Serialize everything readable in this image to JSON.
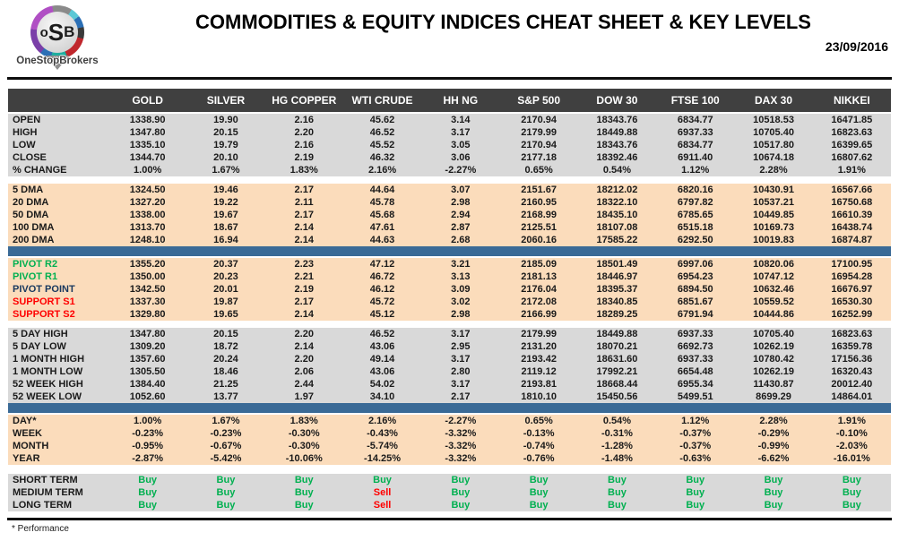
{
  "header": {
    "logo_text": "oSB",
    "logo_name": "OneStopBrokers",
    "title": "COMMODITIES & EQUITY INDICES CHEAT SHEET & KEY LEVELS",
    "date": "23/09/2016"
  },
  "colors": {
    "header_row_bg": "#404040",
    "section_gray": "#d9d9d9",
    "section_peach": "#fbdcbb",
    "blue_divider": "#3a6a96",
    "green": "#00b050",
    "red": "#ff0000",
    "navy": "#17375e"
  },
  "table": {
    "columns": [
      "GOLD",
      "SILVER",
      "HG COPPER",
      "WTI CRUDE",
      "HH NG",
      "S&P 500",
      "DOW 30",
      "FTSE 100",
      "DAX 30",
      "NIKKEI"
    ],
    "sections": [
      {
        "id": "prices",
        "bg": "gray",
        "separator": "first",
        "rows": [
          {
            "label": "OPEN",
            "values": [
              "1338.90",
              "19.90",
              "2.16",
              "45.62",
              "3.14",
              "2170.94",
              "18343.76",
              "6834.77",
              "10518.53",
              "16471.85"
            ]
          },
          {
            "label": "HIGH",
            "values": [
              "1347.80",
              "20.15",
              "2.20",
              "46.52",
              "3.17",
              "2179.99",
              "18449.88",
              "6937.33",
              "10705.40",
              "16823.63"
            ]
          },
          {
            "label": "LOW",
            "values": [
              "1335.10",
              "19.79",
              "2.16",
              "45.52",
              "3.05",
              "2170.94",
              "18343.76",
              "6834.77",
              "10517.80",
              "16399.65"
            ]
          },
          {
            "label": "CLOSE",
            "values": [
              "1344.70",
              "20.10",
              "2.19",
              "46.32",
              "3.06",
              "2177.18",
              "18392.46",
              "6911.40",
              "10674.18",
              "16807.62"
            ]
          },
          {
            "label": "% CHANGE",
            "values": [
              "1.00%",
              "1.67%",
              "1.83%",
              "2.16%",
              "-2.27%",
              "0.65%",
              "0.54%",
              "1.12%",
              "2.28%",
              "1.91%"
            ]
          }
        ]
      },
      {
        "id": "moving-averages",
        "bg": "peach",
        "separator": "gap",
        "rows": [
          {
            "label": "5 DMA",
            "values": [
              "1324.50",
              "19.46",
              "2.17",
              "44.64",
              "3.07",
              "2151.67",
              "18212.02",
              "6820.16",
              "10430.91",
              "16567.66"
            ]
          },
          {
            "label": "20 DMA",
            "values": [
              "1327.20",
              "19.22",
              "2.11",
              "45.78",
              "2.98",
              "2160.95",
              "18322.10",
              "6797.82",
              "10537.21",
              "16750.68"
            ]
          },
          {
            "label": "50 DMA",
            "values": [
              "1338.00",
              "19.67",
              "2.17",
              "45.68",
              "2.94",
              "2168.99",
              "18435.10",
              "6785.65",
              "10449.85",
              "16610.39"
            ]
          },
          {
            "label": "100 DMA",
            "values": [
              "1313.70",
              "18.67",
              "2.14",
              "47.61",
              "2.87",
              "2125.51",
              "18107.08",
              "6515.18",
              "10169.73",
              "16438.74"
            ]
          },
          {
            "label": "200 DMA",
            "values": [
              "1248.10",
              "16.94",
              "2.14",
              "44.63",
              "2.68",
              "2060.16",
              "17585.22",
              "6292.50",
              "10019.83",
              "16874.87"
            ]
          }
        ]
      },
      {
        "id": "pivots",
        "bg": "peach",
        "separator": "blue",
        "rows": [
          {
            "label": "PIVOT R2",
            "label_color": "green",
            "values": [
              "1355.20",
              "20.37",
              "2.23",
              "47.12",
              "3.21",
              "2185.09",
              "18501.49",
              "6997.06",
              "10820.06",
              "17100.95"
            ]
          },
          {
            "label": "PIVOT R1",
            "label_color": "green",
            "values": [
              "1350.00",
              "20.23",
              "2.21",
              "46.72",
              "3.13",
              "2181.13",
              "18446.97",
              "6954.23",
              "10747.12",
              "16954.28"
            ]
          },
          {
            "label": "PIVOT POINT",
            "label_color": "navy",
            "values": [
              "1342.50",
              "20.01",
              "2.19",
              "46.12",
              "3.09",
              "2176.04",
              "18395.37",
              "6894.50",
              "10632.46",
              "16676.97"
            ]
          },
          {
            "label": "SUPPORT S1",
            "label_color": "red",
            "values": [
              "1337.30",
              "19.87",
              "2.17",
              "45.72",
              "3.02",
              "2172.08",
              "18340.85",
              "6851.67",
              "10559.52",
              "16530.30"
            ]
          },
          {
            "label": "SUPPORT S2",
            "label_color": "red",
            "values": [
              "1329.80",
              "19.65",
              "2.14",
              "45.12",
              "2.98",
              "2166.99",
              "18289.25",
              "6791.94",
              "10444.86",
              "16252.99"
            ]
          }
        ]
      },
      {
        "id": "ranges",
        "bg": "gray",
        "separator": "gap",
        "rows": [
          {
            "label": "5 DAY HIGH",
            "values": [
              "1347.80",
              "20.15",
              "2.20",
              "46.52",
              "3.17",
              "2179.99",
              "18449.88",
              "6937.33",
              "10705.40",
              "16823.63"
            ]
          },
          {
            "label": "5 DAY LOW",
            "values": [
              "1309.20",
              "18.72",
              "2.14",
              "43.06",
              "2.95",
              "2131.20",
              "18070.21",
              "6692.73",
              "10262.19",
              "16359.78"
            ]
          },
          {
            "label": "1 MONTH HIGH",
            "values": [
              "1357.60",
              "20.24",
              "2.20",
              "49.14",
              "3.17",
              "2193.42",
              "18631.60",
              "6937.33",
              "10780.42",
              "17156.36"
            ]
          },
          {
            "label": "1 MONTH LOW",
            "values": [
              "1305.50",
              "18.46",
              "2.06",
              "43.06",
              "2.80",
              "2119.12",
              "17992.21",
              "6654.48",
              "10262.19",
              "16320.43"
            ]
          },
          {
            "label": "52 WEEK HIGH",
            "values": [
              "1384.40",
              "21.25",
              "2.44",
              "54.02",
              "3.17",
              "2193.81",
              "18668.44",
              "6955.34",
              "11430.87",
              "20012.40"
            ]
          },
          {
            "label": "52 WEEK LOW",
            "values": [
              "1052.60",
              "13.77",
              "1.97",
              "34.10",
              "2.17",
              "1810.10",
              "15450.56",
              "5499.51",
              "8699.29",
              "14864.01"
            ]
          }
        ]
      },
      {
        "id": "performance",
        "bg": "peach",
        "separator": "blue",
        "rows": [
          {
            "label": "DAY*",
            "values": [
              "1.00%",
              "1.67%",
              "1.83%",
              "2.16%",
              "-2.27%",
              "0.65%",
              "0.54%",
              "1.12%",
              "2.28%",
              "1.91%"
            ]
          },
          {
            "label": "WEEK",
            "values": [
              "-0.23%",
              "-0.23%",
              "-0.30%",
              "-0.43%",
              "-3.32%",
              "-0.13%",
              "-0.31%",
              "-0.37%",
              "-0.29%",
              "-0.10%"
            ]
          },
          {
            "label": "MONTH",
            "values": [
              "-0.95%",
              "-0.67%",
              "-0.30%",
              "-5.74%",
              "-3.32%",
              "-0.74%",
              "-1.28%",
              "-0.37%",
              "-0.99%",
              "-2.03%"
            ]
          },
          {
            "label": "YEAR",
            "values": [
              "-2.87%",
              "-5.42%",
              "-10.06%",
              "-14.25%",
              "-3.32%",
              "-0.76%",
              "-1.48%",
              "-0.63%",
              "-6.62%",
              "-16.01%"
            ]
          }
        ]
      },
      {
        "id": "signals",
        "bg": "gray",
        "separator": "gap-lg",
        "rows": [
          {
            "label": "SHORT TERM",
            "values": [
              "Buy",
              "Buy",
              "Buy",
              "Buy",
              "Buy",
              "Buy",
              "Buy",
              "Buy",
              "Buy",
              "Buy"
            ]
          },
          {
            "label": "MEDIUM TERM",
            "values": [
              "Buy",
              "Buy",
              "Buy",
              "Sell",
              "Buy",
              "Buy",
              "Buy",
              "Buy",
              "Buy",
              "Buy"
            ]
          },
          {
            "label": "LONG TERM",
            "values": [
              "Buy",
              "Buy",
              "Buy",
              "Sell",
              "Buy",
              "Buy",
              "Buy",
              "Buy",
              "Buy",
              "Buy"
            ]
          }
        ]
      }
    ]
  },
  "footer": {
    "note": "* Performance"
  }
}
